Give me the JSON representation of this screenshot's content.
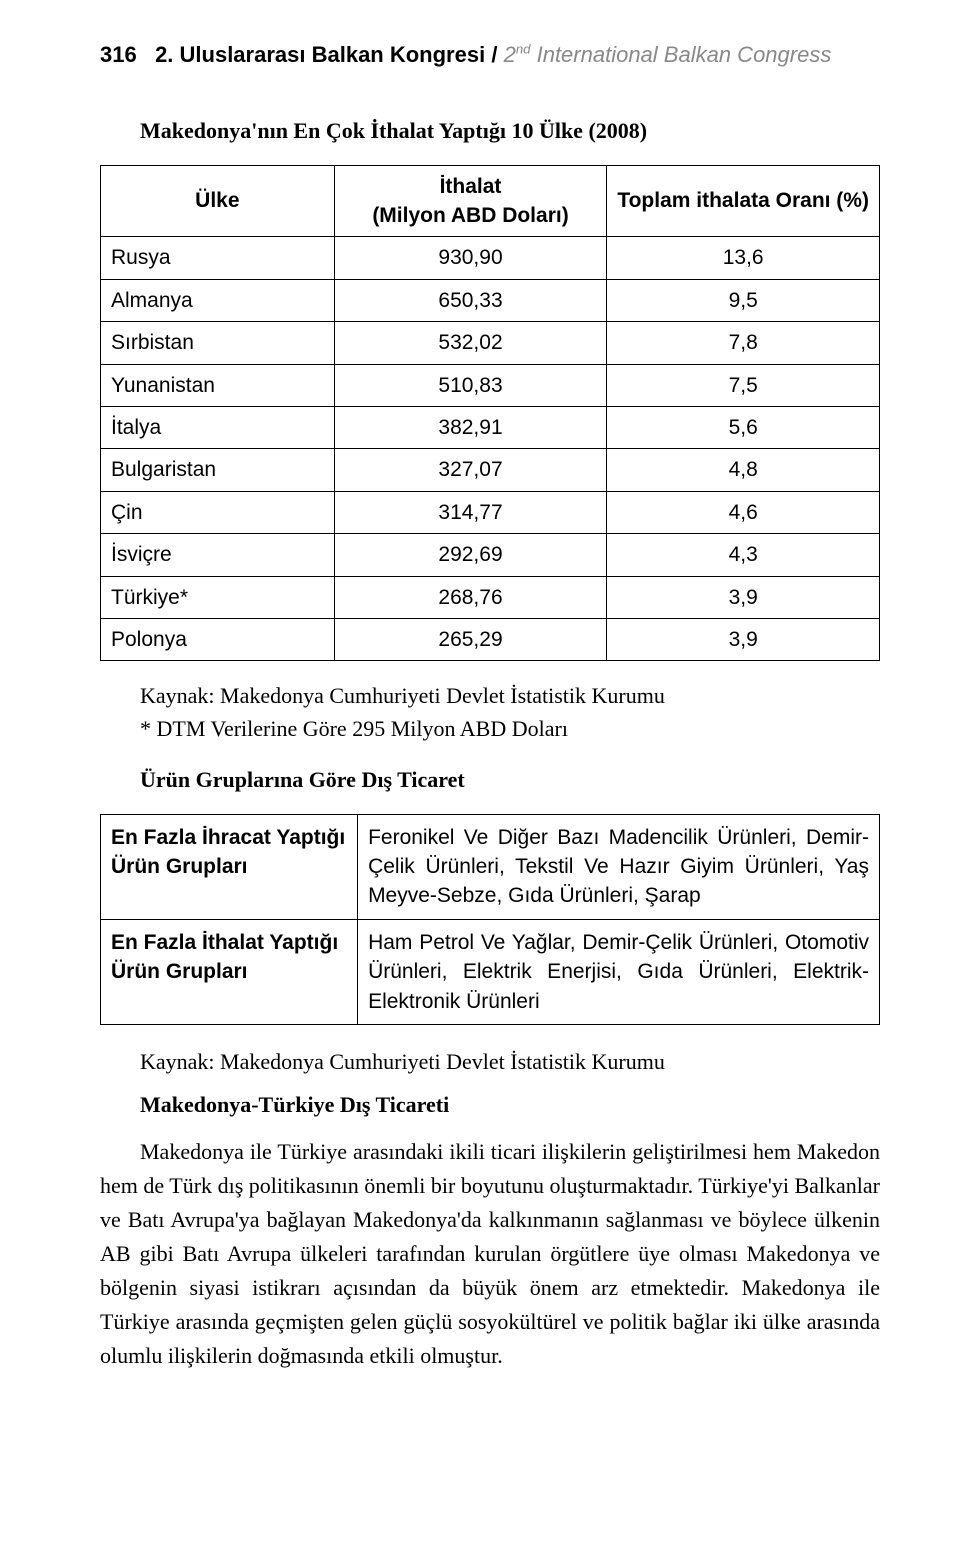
{
  "header": {
    "page_number": "316",
    "title_bold": "2. Uluslararası Balkan Kongresi /",
    "title_italic_pre": "2",
    "title_italic_sup": "nd",
    "title_italic_post": " International Balkan Congress"
  },
  "table1": {
    "heading": "Makedonya'nın En Çok İthalat Yaptığı 10 Ülke (2008)",
    "columns": [
      "Ülke",
      "İthalat\n(Milyon ABD Doları)",
      "Toplam ithalata Oranı (%)"
    ],
    "rows": [
      [
        "Rusya",
        "930,90",
        "13,6"
      ],
      [
        "Almanya",
        "650,33",
        "9,5"
      ],
      [
        "Sırbistan",
        "532,02",
        "7,8"
      ],
      [
        "Yunanistan",
        "510,83",
        "7,5"
      ],
      [
        "İtalya",
        "382,91",
        "5,6"
      ],
      [
        "Bulgaristan",
        "327,07",
        "4,8"
      ],
      [
        "Çin",
        "314,77",
        "4,6"
      ],
      [
        "İsviçre",
        "292,69",
        "4,3"
      ],
      [
        "Türkiye*",
        "268,76",
        "3,9"
      ],
      [
        "Polonya",
        "265,29",
        "3,9"
      ]
    ]
  },
  "source1": {
    "line1": "Kaynak: Makedonya Cumhuriyeti Devlet İstatistik Kurumu",
    "line2": "* DTM Verilerine Göre 295 Milyon ABD Doları"
  },
  "table2": {
    "heading": "Ürün Gruplarına Göre Dış Ticaret",
    "rows": [
      {
        "label": "En Fazla İhracat Yaptığı Ürün Grupları",
        "desc": "Feronikel Ve Diğer Bazı Madencilik Ürünleri, Demir-Çelik Ürünleri, Tekstil Ve Hazır Giyim Ürünleri, Yaş Meyve-Sebze, Gıda Ürünleri, Şarap"
      },
      {
        "label": "En Fazla İthalat Yaptığı Ürün Grupları",
        "desc": "Ham Petrol Ve Yağlar, Demir-Çelik Ürünleri, Otomotiv Ürünleri, Elektrik Enerjisi, Gıda Ürünleri, Elektrik-Elektronik Ürünleri"
      }
    ]
  },
  "source2": "Kaynak: Makedonya Cumhuriyeti Devlet İstatistik Kurumu",
  "subheading": "Makedonya-Türkiye Dış Ticareti",
  "paragraph": "Makedonya ile Türkiye arasındaki ikili ticari ilişkilerin geliştirilmesi hem Makedon hem de Türk dış politikasının önemli bir boyutunu oluşturmaktadır. Türkiye'yi Balkanlar ve Batı Avrupa'ya bağlayan Makedonya'da kalkınmanın sağlanması ve böylece ülkenin AB gibi Batı Avrupa ülkeleri tarafından kurulan örgütlere üye olması Makedonya ve bölgenin siyasi istikrarı açısından da büyük önem arz etmektedir. Makedonya ile Türkiye arasında geçmişten gelen güçlü sosyokültürel ve politik bağlar iki ülke arasında olumlu ilişkilerin doğmasında etkili olmuştur."
}
